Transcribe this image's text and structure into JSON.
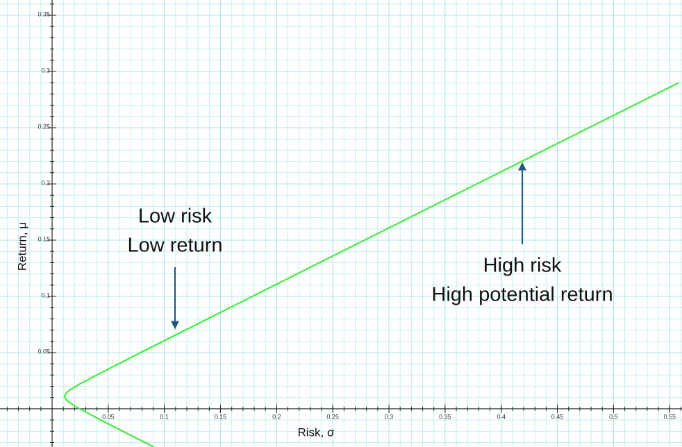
{
  "chart_data": {
    "type": "line",
    "x_label": "Risk, σ",
    "y_label": "Return, μ",
    "x": [
      0.0907,
      0.063,
      0.0434,
      0.0246,
      0.0163,
      0.0125,
      0.011,
      0.0125,
      0.0163,
      0.0246,
      0.0396,
      0.0788,
      0.1783,
      0.2782,
      0.3782,
      0.4781,
      0.5581
    ],
    "series": [
      {
        "color": "#33ee33",
        "values": [
          -0.034,
          -0.02,
          -0.01,
          0,
          0.005,
          0.008,
          0.011,
          0.014,
          0.017,
          0.022,
          0.03,
          0.05,
          0.1,
          0.15,
          0.2,
          0.25,
          0.29
        ]
      }
    ],
    "xlim": [
      -0.0464,
      0.561
    ],
    "ylim": [
      -0.034,
      0.3636
    ],
    "xticks": [
      0.05,
      0.1,
      0.15,
      0.2,
      0.25,
      0.3,
      0.35,
      0.4,
      0.45,
      0.5,
      0.55
    ],
    "yticks": [
      0.05,
      0.1,
      0.15,
      0.2,
      0.25,
      0.3,
      0.35
    ],
    "grid": true,
    "annotations": [
      {
        "lines": [
          "Low risk",
          "Low return"
        ]
      },
      {
        "lines": [
          "High risk",
          "High potential return"
        ]
      }
    ]
  }
}
